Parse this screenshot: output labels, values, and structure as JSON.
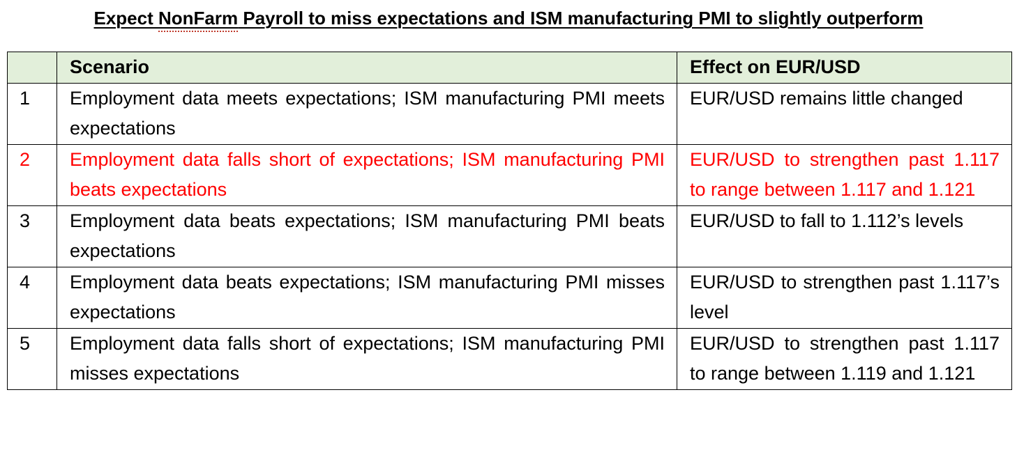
{
  "title": {
    "before": "Expect ",
    "special_word": "NonFarm",
    "after": " Payroll to miss expectations and ISM manufacturing PMI to slightly outperform"
  },
  "table": {
    "headers": {
      "number": "",
      "scenario": "Scenario",
      "effect": "Effect on EUR/USD"
    },
    "rows": [
      {
        "number": "1",
        "scenario": "Employment data meets expectations; ISM manufacturing PMI meets expectations",
        "effect": "EUR/USD remains little changed"
      },
      {
        "number": "2",
        "scenario": "Employment data falls short of expectations; ISM manufacturing PMI beats expectations",
        "effect": "EUR/USD to strengthen past 1.117 to range between 1.117 and 1.121"
      },
      {
        "number": "3",
        "scenario": "Employment data beats expectations; ISM manufacturing PMI beats expectations",
        "effect": "EUR/USD to fall to 1.112’s levels"
      },
      {
        "number": "4",
        "scenario": "Employment data beats expectations; ISM manufacturing PMI misses expectations",
        "effect": "EUR/USD to strengthen past 1.117’s level"
      },
      {
        "number": "5",
        "scenario": "Employment data falls short of expectations; ISM manufacturing PMI misses expectations",
        "effect": "EUR/USD to strengthen past 1.117 to range between 1.119 and 1.121"
      }
    ]
  },
  "colors": {
    "header_background": "#e2efda",
    "highlight_text": "#ff0000"
  }
}
